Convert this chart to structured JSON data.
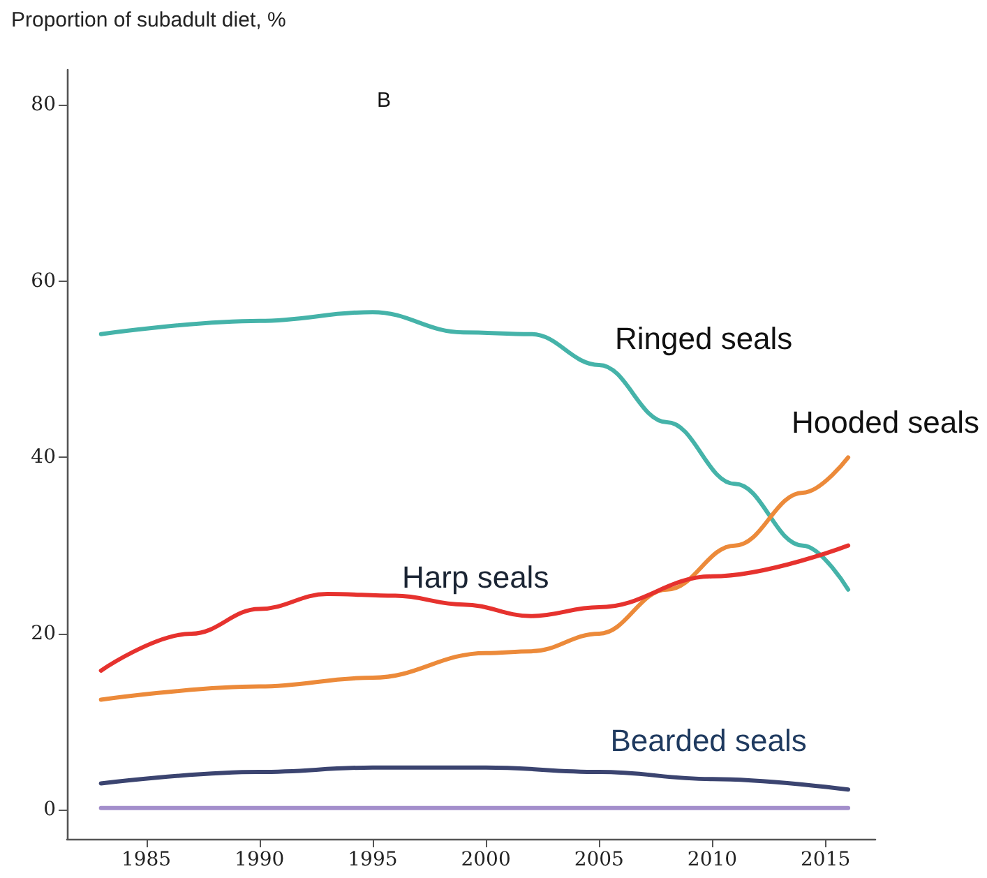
{
  "chart_data": {
    "type": "line",
    "ylabel": "Proportion of subadult diet, %",
    "annotations": [
      "B"
    ],
    "xlim": [
      1981.5,
      2017.2
    ],
    "xticks": [
      1985,
      1990,
      1995,
      2000,
      2005,
      2010,
      2015
    ],
    "ylim": [
      -3.3,
      84
    ],
    "yticks": [
      0,
      20,
      40,
      60,
      80
    ],
    "grid": false,
    "legend": false,
    "marker": "none",
    "line_style": "solid",
    "series": [
      {
        "name": "Ringed seals",
        "color": "#45b3a9",
        "x": [
          1983,
          1990,
          1995,
          1999,
          2002,
          2005,
          2008,
          2011,
          2014,
          2016
        ],
        "values": [
          54,
          55.5,
          56.5,
          54.2,
          54,
          50.5,
          44,
          37,
          30,
          25
        ]
      },
      {
        "name": "Hooded seals",
        "color": "#ec8a3a",
        "x": [
          1983,
          1990,
          1995,
          2000,
          2002,
          2005,
          2008,
          2011,
          2014,
          2016
        ],
        "values": [
          12.5,
          14,
          15,
          17.8,
          18,
          20,
          25,
          30,
          36,
          40
        ]
      },
      {
        "name": "Harp seals",
        "color": "#e6322e",
        "x": [
          1983,
          1987,
          1990,
          1993,
          1996,
          1999,
          2002,
          2005,
          2010,
          2016
        ],
        "values": [
          15.8,
          20,
          22.8,
          24.5,
          24.3,
          23.3,
          22,
          23,
          26.5,
          30
        ]
      },
      {
        "name": "Bearded seals",
        "color": "#3b4470",
        "x": [
          1983,
          1990,
          1995,
          2000,
          2005,
          2010,
          2016
        ],
        "values": [
          3,
          4.3,
          4.8,
          4.8,
          4.3,
          3.5,
          2.3
        ]
      },
      {
        "color": "#a38ecb",
        "x": [
          1983,
          2016
        ],
        "values": [
          0.2,
          0.2
        ]
      }
    ]
  }
}
